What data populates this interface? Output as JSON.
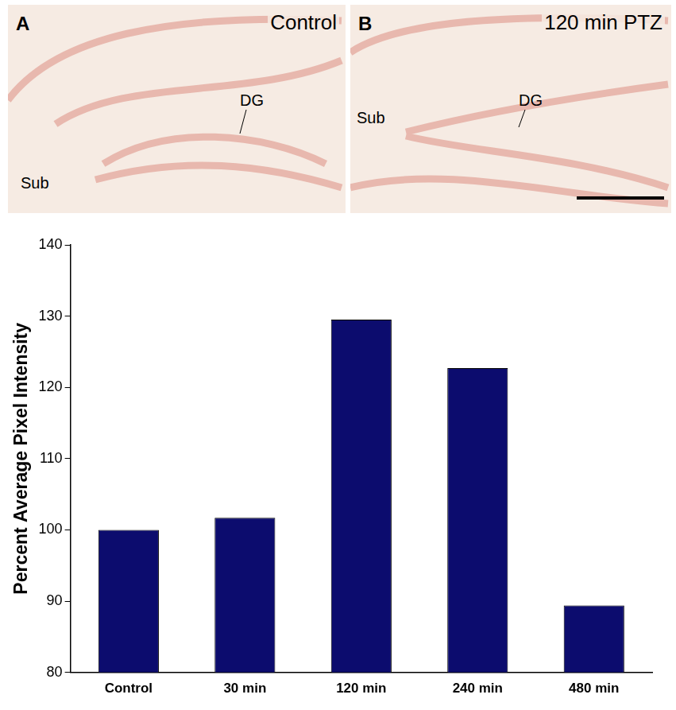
{
  "images": [
    {
      "letter": "A",
      "title": "Control",
      "labels": [
        "DG",
        "Sub"
      ]
    },
    {
      "letter": "B",
      "title": "120 min PTZ",
      "labels": [
        "DG",
        "Sub"
      ]
    }
  ],
  "chart_data": {
    "type": "bar",
    "y_label": "Percent Average Pixel Intensity",
    "categories": [
      "Control",
      "30 min",
      "120 min",
      "240 min",
      "480 min"
    ],
    "values": [
      100,
      101.7,
      129.5,
      122.7,
      89.4
    ],
    "color": "#0c0c6e",
    "ylim": [
      80,
      140
    ],
    "yticks": [
      80,
      90,
      100,
      110,
      120,
      130,
      140
    ],
    "grid": false
  }
}
